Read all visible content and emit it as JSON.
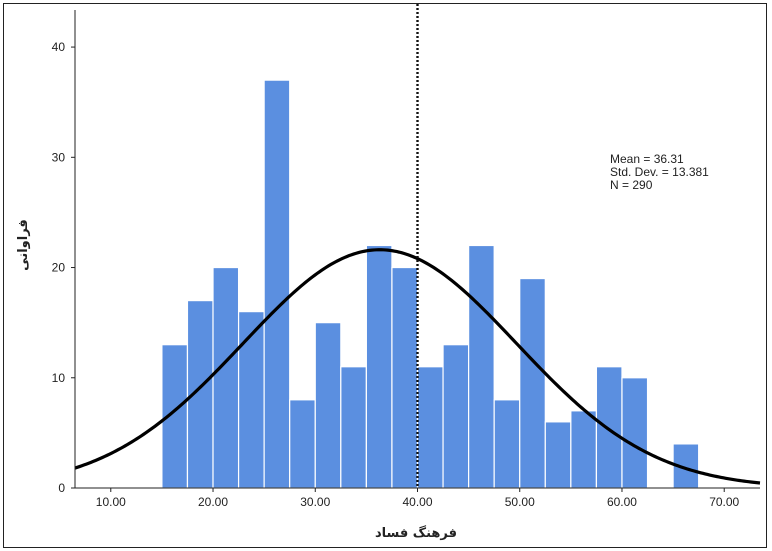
{
  "chart_data": {
    "type": "bar",
    "subtype": "histogram",
    "xlabel": "فرهنگ فساد",
    "ylabel": "فراوانی",
    "xlim": [
      6.5,
      73.5
    ],
    "ylim": [
      0,
      43
    ],
    "x_ticks": [
      "10.00",
      "20.00",
      "30.00",
      "40.00",
      "50.00",
      "60.00",
      "70.00"
    ],
    "y_ticks": [
      "0",
      "10",
      "20",
      "30",
      "40"
    ],
    "bin_width": 2.5,
    "bins": [
      {
        "start": 15.0,
        "count": 13
      },
      {
        "start": 17.5,
        "count": 17
      },
      {
        "start": 20.0,
        "count": 20
      },
      {
        "start": 22.5,
        "count": 16
      },
      {
        "start": 25.0,
        "count": 37
      },
      {
        "start": 27.5,
        "count": 8
      },
      {
        "start": 30.0,
        "count": 15
      },
      {
        "start": 32.5,
        "count": 11
      },
      {
        "start": 35.0,
        "count": 22
      },
      {
        "start": 37.5,
        "count": 20
      },
      {
        "start": 40.0,
        "count": 11
      },
      {
        "start": 42.5,
        "count": 13
      },
      {
        "start": 45.0,
        "count": 22
      },
      {
        "start": 47.5,
        "count": 8
      },
      {
        "start": 50.0,
        "count": 19
      },
      {
        "start": 52.5,
        "count": 6
      },
      {
        "start": 55.0,
        "count": 7
      },
      {
        "start": 57.5,
        "count": 11
      },
      {
        "start": 60.0,
        "count": 10
      },
      {
        "start": 65.0,
        "count": 4
      }
    ],
    "normal_curve": {
      "mean": 36.31,
      "sd": 13.381,
      "n": 290
    },
    "reference_line_x": 40.0,
    "stats_lines": [
      "Mean = 36.31",
      "Std. Dev. = 13.381",
      "N = 290"
    ],
    "colors": {
      "bar": "#5b8fe0",
      "bar_edge": "#ffffff",
      "curve": "#000000",
      "axis": "#222222"
    },
    "grid": false,
    "legend": "none"
  }
}
